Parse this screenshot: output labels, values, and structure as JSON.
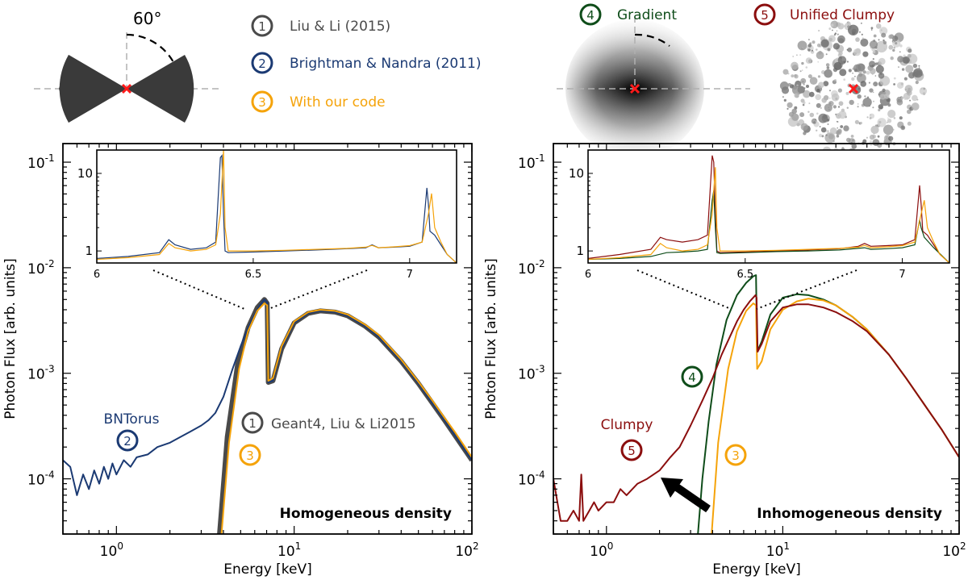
{
  "colors": {
    "geant4": "#4a4a4a",
    "bntorus": "#1b3a73",
    "our_code": "#f5a30a",
    "gradient": "#0f4d1a",
    "clumpy": "#8b0e0e",
    "axis": "#000000",
    "marker": "#ff1a1a"
  },
  "geometry_legend": {
    "angle_label": "60$^\\circ$",
    "angle_text": "60°",
    "items": [
      {
        "number": "1",
        "label": "Liu & Li (2015)",
        "color": "#4a4a4a"
      },
      {
        "number": "2",
        "label": "Brightman & Nandra (2011)",
        "color": "#1b3a73"
      },
      {
        "number": "3",
        "label": "With our code",
        "color": "#f5a30a"
      },
      {
        "number": "4",
        "label": "Gradient",
        "color": "#0f4d1a"
      },
      {
        "number": "5",
        "label": "Unified Clumpy",
        "color": "#8b0e0e"
      }
    ]
  },
  "chart_data": [
    {
      "type": "line",
      "panel": "left",
      "title": "Homogeneous density",
      "xlabel": "Energy [keV]",
      "ylabel": "Photon Flux [arb. units]",
      "xscale": "log",
      "yscale": "log",
      "xlim": [
        0.5,
        100
      ],
      "ylim": [
        3e-05,
        0.15
      ],
      "x_ticks": [
        {
          "value": 1,
          "base": "10",
          "exp": "0"
        },
        {
          "value": 10,
          "base": "10",
          "exp": "1"
        },
        {
          "value": 100,
          "base": "10",
          "exp": "2"
        }
      ],
      "y_ticks": [
        {
          "value": 0.0001,
          "base": "10",
          "exp": "-4"
        },
        {
          "value": 0.001,
          "base": "10",
          "exp": "-3"
        },
        {
          "value": 0.01,
          "base": "10",
          "exp": "-2"
        },
        {
          "value": 0.1,
          "base": "10",
          "exp": "-1"
        }
      ],
      "series": [
        {
          "name": "Geant4, Liu & Li2015",
          "id": "1",
          "color": "#4a4a4a",
          "x": [
            3.8,
            4.2,
            4.8,
            5.5,
            6.2,
            6.8,
            7.05,
            7.15,
            7.6,
            8.5,
            10,
            12,
            14,
            17,
            20,
            25,
            30,
            40,
            50,
            60,
            70,
            80,
            100
          ],
          "y": [
            3e-05,
            0.00025,
            0.0012,
            0.0027,
            0.0042,
            0.005,
            0.0046,
            0.00082,
            0.00085,
            0.0017,
            0.003,
            0.0037,
            0.0039,
            0.0038,
            0.0035,
            0.0028,
            0.0022,
            0.0013,
            0.0008,
            0.00052,
            0.00036,
            0.00026,
            0.00015
          ]
        },
        {
          "name": "BNTorus",
          "id": "2",
          "color": "#1b3a73",
          "x": [
            0.5,
            0.55,
            0.6,
            0.65,
            0.7,
            0.75,
            0.8,
            0.85,
            0.9,
            0.95,
            1.0,
            1.1,
            1.2,
            1.3,
            1.5,
            1.7,
            2.0,
            2.3,
            2.6,
            3.0,
            3.3,
            3.6,
            4.0,
            4.5,
            5.0,
            5.5,
            6.0,
            6.4,
            6.8,
            7.05,
            7.15,
            7.6,
            8.5,
            10,
            12,
            14,
            17,
            20,
            25,
            30,
            40,
            50,
            60,
            70,
            80,
            100
          ],
          "y": [
            0.00015,
            0.00013,
            7e-05,
            0.00011,
            8e-05,
            0.00012,
            9e-05,
            0.00013,
            0.0001,
            0.00014,
            0.00011,
            0.00015,
            0.00013,
            0.00016,
            0.00017,
            0.0002,
            0.00022,
            0.00025,
            0.00028,
            0.00032,
            0.00036,
            0.00042,
            0.0006,
            0.0011,
            0.0018,
            0.0027,
            0.0036,
            0.0044,
            0.005,
            0.0047,
            0.00082,
            0.00085,
            0.0017,
            0.003,
            0.0037,
            0.0039,
            0.0038,
            0.0035,
            0.0028,
            0.0022,
            0.0013,
            0.0008,
            0.00052,
            0.00036,
            0.00026,
            0.00015
          ]
        },
        {
          "name": "With our code",
          "id": "3",
          "color": "#f5a30a",
          "x": [
            3.9,
            4.3,
            4.9,
            5.5,
            6.2,
            6.8,
            7.05,
            7.15,
            7.6,
            8.5,
            10,
            12,
            14,
            17,
            20,
            25,
            30,
            40,
            50,
            60,
            70,
            80,
            100
          ],
          "y": [
            3e-05,
            0.00022,
            0.0011,
            0.0025,
            0.0039,
            0.0046,
            0.0044,
            0.00085,
            0.0009,
            0.0018,
            0.0031,
            0.0038,
            0.004,
            0.0039,
            0.0036,
            0.0029,
            0.0023,
            0.00135,
            0.00083,
            0.00055,
            0.00038,
            0.00028,
            0.00016
          ]
        }
      ],
      "annotations": [
        {
          "text": "BNTorus",
          "circle": "2",
          "color": "#1b3a73"
        },
        {
          "text": "Geant4, Liu & Li2015",
          "circle": "1",
          "color": "#4a4a4a"
        },
        {
          "text": "",
          "circle": "3",
          "color": "#f5a30a"
        }
      ],
      "inset": {
        "xlim": [
          6.0,
          7.15
        ],
        "ylim": [
          0.7,
          20
        ],
        "x_ticks": [
          {
            "value": 6,
            "label": "6"
          },
          {
            "value": 6.5,
            "label": "6.5"
          },
          {
            "value": 7,
            "label": "7"
          }
        ],
        "y_ticks": [
          {
            "value": 1,
            "label": "1"
          },
          {
            "value": 10,
            "label": "10"
          }
        ],
        "series": [
          {
            "name": "Brightman & Nandra (2011)",
            "color": "#1b3a73",
            "x": [
              6.0,
              6.1,
              6.2,
              6.23,
              6.25,
              6.3,
              6.35,
              6.38,
              6.395,
              6.4,
              6.405,
              6.41,
              6.42,
              6.5,
              6.6,
              6.7,
              6.8,
              6.86,
              6.88,
              6.9,
              6.95,
              7.0,
              7.04,
              7.055,
              7.06,
              7.065,
              7.08,
              7.1,
              7.12,
              7.15
            ],
            "y": [
              0.8,
              0.85,
              0.95,
              1.4,
              1.2,
              1.05,
              1.1,
              1.3,
              16,
              17,
              3,
              1.0,
              0.95,
              0.97,
              1.0,
              1.03,
              1.07,
              1.1,
              1.2,
              1.1,
              1.12,
              1.15,
              1.3,
              6.5,
              4,
              1.8,
              1.6,
              1.2,
              0.9,
              0.7
            ]
          },
          {
            "name": "With our code",
            "color": "#f5a30a",
            "x": [
              6.0,
              6.1,
              6.2,
              6.23,
              6.25,
              6.3,
              6.35,
              6.38,
              6.395,
              6.405,
              6.41,
              6.42,
              6.5,
              6.6,
              6.7,
              6.8,
              6.86,
              6.88,
              6.9,
              6.95,
              7.0,
              7.04,
              7.06,
              7.07,
              7.08,
              7.1,
              7.12,
              7.15
            ],
            "y": [
              0.78,
              0.82,
              0.9,
              1.25,
              1.1,
              1.0,
              1.05,
              1.2,
              3,
              20,
              2,
              1.0,
              1.0,
              1.02,
              1.05,
              1.08,
              1.12,
              1.18,
              1.1,
              1.13,
              1.17,
              1.3,
              3,
              5.5,
              2,
              1.3,
              0.9,
              0.7
            ]
          }
        ]
      }
    },
    {
      "type": "line",
      "panel": "right",
      "title": "Inhomogeneous density",
      "xlabel": "Energy [keV]",
      "ylabel": "Photon Flux [arb. units]",
      "xscale": "log",
      "yscale": "log",
      "xlim": [
        0.5,
        100
      ],
      "ylim": [
        3e-05,
        0.15
      ],
      "x_ticks": [
        {
          "value": 1,
          "base": "10",
          "exp": "0"
        },
        {
          "value": 10,
          "base": "10",
          "exp": "1"
        },
        {
          "value": 100,
          "base": "10",
          "exp": "2"
        }
      ],
      "y_ticks": [
        {
          "value": 0.0001,
          "base": "10",
          "exp": "-4"
        },
        {
          "value": 0.001,
          "base": "10",
          "exp": "-3"
        },
        {
          "value": 0.01,
          "base": "10",
          "exp": "-2"
        },
        {
          "value": 0.1,
          "base": "10",
          "exp": "-1"
        }
      ],
      "series": [
        {
          "name": "Gradient",
          "id": "4",
          "color": "#0f4d1a",
          "x": [
            3.3,
            3.5,
            3.8,
            4.2,
            4.8,
            5.5,
            6.2,
            6.8,
            7.05,
            7.15,
            7.6,
            8.5,
            10,
            12,
            14,
            17,
            20,
            25,
            30,
            40,
            50,
            60,
            70,
            80,
            100
          ],
          "y": [
            3e-05,
            0.0001,
            0.00035,
            0.0012,
            0.0032,
            0.0055,
            0.0072,
            0.0083,
            0.0085,
            0.0016,
            0.002,
            0.0036,
            0.0052,
            0.0056,
            0.0055,
            0.005,
            0.0044,
            0.0034,
            0.0026,
            0.0015,
            0.0009,
            0.00058,
            0.0004,
            0.00029,
            0.00016
          ]
        },
        {
          "name": "With our code",
          "id": "3",
          "color": "#f5a30a",
          "x": [
            3.95,
            4.3,
            4.9,
            5.5,
            6.2,
            6.8,
            7.05,
            7.15,
            7.6,
            8.5,
            10,
            12,
            14,
            17,
            20,
            25,
            30,
            40,
            50,
            60,
            70,
            80,
            100
          ],
          "y": [
            3e-05,
            0.00022,
            0.0011,
            0.0025,
            0.0039,
            0.0046,
            0.0044,
            0.0011,
            0.0013,
            0.0026,
            0.004,
            0.0048,
            0.0051,
            0.0049,
            0.0044,
            0.0034,
            0.0026,
            0.0015,
            0.0009,
            0.00058,
            0.0004,
            0.00029,
            0.00016
          ]
        },
        {
          "name": "Clumpy",
          "id": "5",
          "color": "#8b0e0e",
          "x": [
            0.5,
            0.55,
            0.6,
            0.65,
            0.7,
            0.72,
            0.74,
            0.8,
            0.85,
            0.9,
            1.0,
            1.1,
            1.2,
            1.3,
            1.5,
            1.7,
            2.0,
            2.3,
            2.6,
            3.0,
            3.5,
            4.0,
            4.5,
            5.0,
            5.5,
            6.0,
            6.5,
            7.0,
            7.1,
            7.2,
            7.6,
            8.5,
            10,
            12,
            14,
            17,
            20,
            25,
            30,
            40,
            50,
            60,
            70,
            80,
            100
          ],
          "y": [
            0.0001,
            4e-05,
            4e-05,
            5e-05,
            4e-05,
            0.00011,
            4e-05,
            5e-05,
            6e-05,
            5e-05,
            6e-05,
            6e-05,
            8e-05,
            7e-05,
            9e-05,
            0.0001,
            0.00012,
            0.00016,
            0.0002,
            0.00032,
            0.00055,
            0.0009,
            0.0015,
            0.0022,
            0.0031,
            0.004,
            0.0048,
            0.0055,
            0.0052,
            0.0016,
            0.0019,
            0.0031,
            0.0042,
            0.0045,
            0.0045,
            0.0042,
            0.0038,
            0.0031,
            0.0025,
            0.0015,
            0.0009,
            0.00058,
            0.0004,
            0.00029,
            0.00016
          ]
        }
      ],
      "annotations": [
        {
          "text": "",
          "circle": "4",
          "color": "#0f4d1a"
        },
        {
          "text": "Clumpy",
          "circle": "5",
          "color": "#8b0e0e"
        },
        {
          "text": "",
          "circle": "3",
          "color": "#f5a30a"
        }
      ],
      "inset": {
        "xlim": [
          6.0,
          7.15
        ],
        "ylim": [
          0.7,
          20
        ],
        "x_ticks": [
          {
            "value": 6,
            "label": "6"
          },
          {
            "value": 6.5,
            "label": "6.5"
          },
          {
            "value": 7,
            "label": "7"
          }
        ],
        "y_ticks": [
          {
            "value": 1,
            "label": "1"
          },
          {
            "value": 10,
            "label": "10"
          }
        ],
        "series": [
          {
            "name": "Clumpy",
            "color": "#8b0e0e",
            "x": [
              6.0,
              6.1,
              6.2,
              6.23,
              6.25,
              6.3,
              6.35,
              6.38,
              6.395,
              6.4,
              6.405,
              6.41,
              6.42,
              6.5,
              6.6,
              6.7,
              6.8,
              6.86,
              6.88,
              6.9,
              6.95,
              7.0,
              7.04,
              7.055,
              7.06,
              7.065,
              7.08,
              7.1,
              7.12,
              7.15
            ],
            "y": [
              0.8,
              0.9,
              1.05,
              1.5,
              1.4,
              1.3,
              1.4,
              1.6,
              17,
              14,
              3,
              1.0,
              0.95,
              0.97,
              1.0,
              1.03,
              1.07,
              1.15,
              1.25,
              1.15,
              1.17,
              1.2,
              1.4,
              7,
              4,
              1.8,
              1.6,
              1.2,
              0.9,
              0.7
            ]
          },
          {
            "name": "Gradient",
            "color": "#0f4d1a",
            "x": [
              6.0,
              6.1,
              6.2,
              6.25,
              6.3,
              6.35,
              6.38,
              6.395,
              6.4,
              6.405,
              6.41,
              6.42,
              6.5,
              6.6,
              6.7,
              6.8,
              6.88,
              6.9,
              6.95,
              7.0,
              7.04,
              7.055,
              7.06,
              7.07,
              7.1,
              7.15
            ],
            "y": [
              0.78,
              0.8,
              0.85,
              0.95,
              0.97,
              1.0,
              1.05,
              4.5,
              6,
              2,
              0.95,
              0.93,
              0.95,
              0.98,
              1.0,
              1.03,
              1.1,
              1.05,
              1.07,
              1.1,
              1.2,
              2.5,
              2,
              1.5,
              1.1,
              0.7
            ]
          },
          {
            "name": "With our code",
            "color": "#f5a30a",
            "x": [
              6.0,
              6.1,
              6.2,
              6.23,
              6.25,
              6.3,
              6.35,
              6.38,
              6.395,
              6.405,
              6.41,
              6.42,
              6.5,
              6.6,
              6.7,
              6.8,
              6.86,
              6.88,
              6.9,
              6.95,
              7.0,
              7.04,
              7.06,
              7.07,
              7.08,
              7.1,
              7.12,
              7.15
            ],
            "y": [
              0.78,
              0.82,
              0.9,
              1.25,
              1.1,
              1.0,
              1.05,
              1.2,
              3,
              12,
              2,
              1.0,
              1.0,
              1.02,
              1.05,
              1.08,
              1.12,
              1.18,
              1.1,
              1.13,
              1.17,
              1.3,
              3,
              4.5,
              2,
              1.3,
              0.9,
              0.7
            ]
          }
        ]
      }
    }
  ]
}
